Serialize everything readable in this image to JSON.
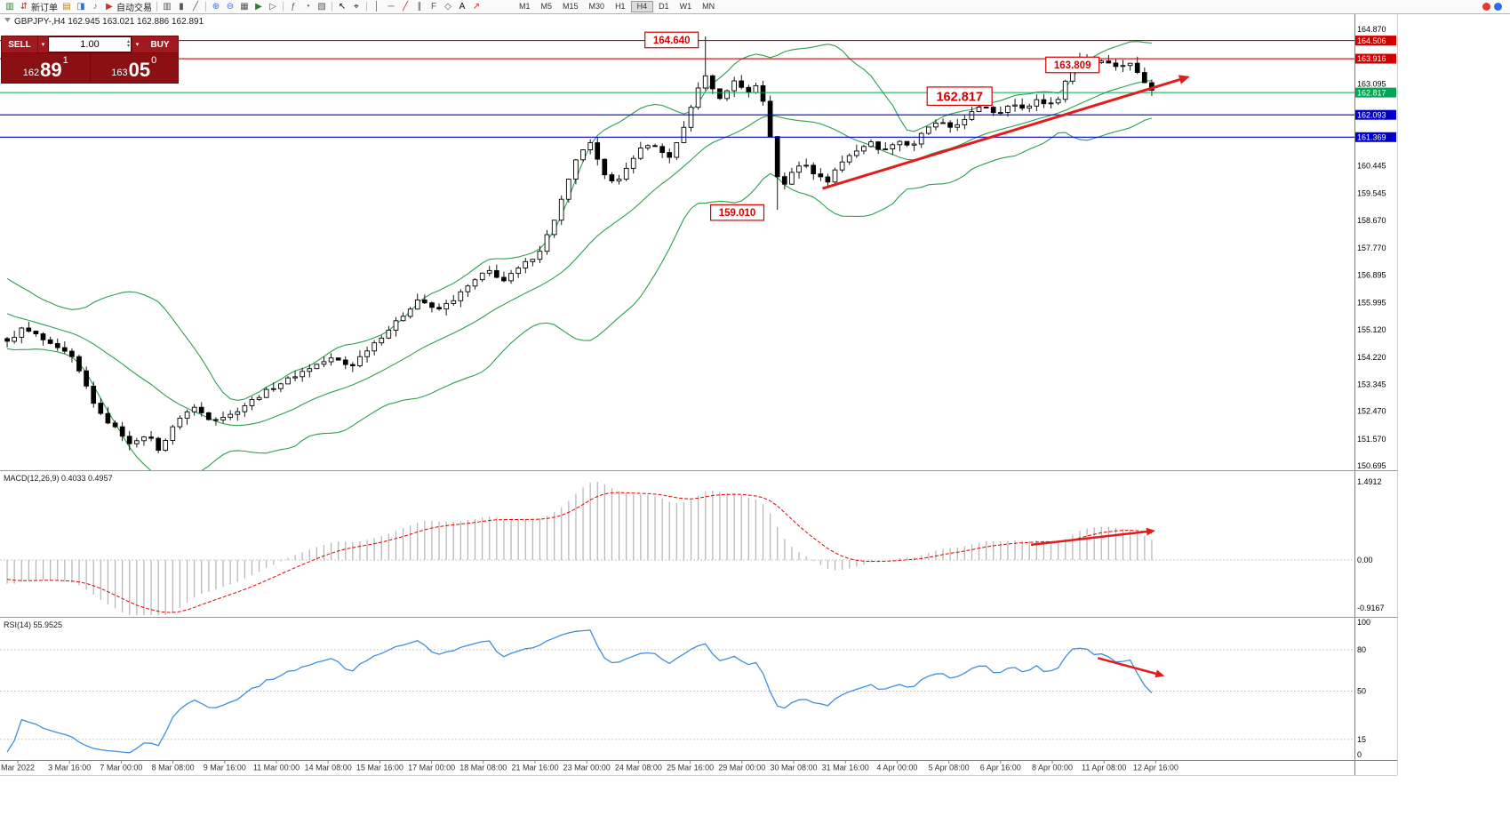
{
  "toolbar": {
    "items": [
      {
        "name": "new-chart-icon",
        "glyph": "▥",
        "color": "#2f7d32"
      },
      {
        "name": "new-order-button",
        "label": "新订单",
        "glyph": "⇵",
        "color": "#c03030"
      },
      {
        "name": "market-watch-icon",
        "glyph": "▤",
        "color": "#b8860b"
      },
      {
        "name": "data-window-icon",
        "glyph": "◨",
        "color": "#3a6fd8"
      },
      {
        "name": "sound-alert-icon",
        "glyph": "♪",
        "color": "#777777"
      },
      {
        "name": "auto-trading-button",
        "label": "自动交易",
        "glyph": "▶",
        "color": "#d03030"
      },
      {
        "sep": true
      },
      {
        "name": "bar-chart-icon",
        "glyph": "▥",
        "color": "#555555"
      },
      {
        "name": "candlestick-chart-icon",
        "glyph": "▮",
        "color": "#555555"
      },
      {
        "name": "line-chart-icon",
        "glyph": "╱",
        "color": "#555555"
      },
      {
        "sep": true
      },
      {
        "name": "zoom-in-icon",
        "glyph": "⊕",
        "color": "#3a6fd8"
      },
      {
        "name": "zoom-out-icon",
        "glyph": "⊖",
        "color": "#3a6fd8"
      },
      {
        "name": "tile-windows-icon",
        "glyph": "▦",
        "color": "#555555"
      },
      {
        "name": "auto-scroll-icon",
        "glyph": "▶",
        "color": "#2f7d32"
      },
      {
        "name": "chart-shift-icon",
        "glyph": "▷",
        "color": "#555555"
      },
      {
        "sep": true
      },
      {
        "name": "indicators-icon",
        "glyph": "ƒ",
        "color": "#2f7d32"
      },
      {
        "name": "periods-icon",
        "glyph": "◔",
        "color": "#555555"
      },
      {
        "name": "templates-icon",
        "glyph": "▧",
        "color": "#555555"
      },
      {
        "sep": true
      },
      {
        "name": "cursor-icon",
        "glyph": "↖",
        "color": "#111111"
      },
      {
        "name": "crosshair-icon",
        "glyph": "⌖",
        "color": "#111111"
      },
      {
        "sep": true
      },
      {
        "name": "vertical-line-icon",
        "glyph": "│",
        "color": "#555555"
      },
      {
        "name": "horizontal-line-icon",
        "glyph": "─",
        "color": "#555555"
      },
      {
        "name": "trendline-icon",
        "glyph": "╱",
        "color": "#c03030"
      },
      {
        "name": "equidistant-channel-icon",
        "glyph": "∥",
        "color": "#555555"
      },
      {
        "name": "fibonacci-icon",
        "glyph": "F",
        "color": "#555555"
      },
      {
        "name": "shapes-icon",
        "glyph": "◇",
        "color": "#555555"
      },
      {
        "name": "text-label-icon",
        "glyph": "A",
        "color": "#111111"
      },
      {
        "name": "arrow-object-icon",
        "glyph": "↗",
        "color": "#c03030"
      }
    ],
    "timeframes": [
      "M1",
      "M5",
      "M15",
      "M30",
      "H1",
      "H4",
      "D1",
      "W1",
      "MN"
    ],
    "active_timeframe": "H4",
    "right_icons": [
      {
        "name": "notification-red-icon",
        "color": "#e23b2e"
      },
      {
        "name": "notification-blue-icon",
        "color": "#2e6be2"
      }
    ]
  },
  "icons": {
    "caret_down": "▾",
    "caret_up": "▴"
  },
  "trade_panel": {
    "sell_button": "SELL",
    "buy_button": "BUY",
    "volume": "1.00",
    "sell_price": {
      "prefix": "162",
      "big": "89",
      "sup": "1"
    },
    "buy_price": {
      "prefix": "163",
      "big": "05",
      "sup": "0"
    }
  },
  "chart_data": {
    "type": "candlestick_with_indicators",
    "symbol": "GBPJPY-",
    "timeframe": "H4",
    "title": "GBPJPY-,H4 162.945 163.021 162.886 162.891",
    "current_ohlc": {
      "open": 162.945,
      "high": 163.021,
      "low": 162.886,
      "close": 162.891
    },
    "bid_price": 162.817,
    "visible_price_range": [
      150.695,
      164.87
    ],
    "candle_count": 160,
    "last_close": 162.891,
    "price_path_anchors": [
      [
        0.0,
        154.7
      ],
      [
        0.013,
        155.15
      ],
      [
        0.025,
        154.95
      ],
      [
        0.04,
        154.55
      ],
      [
        0.055,
        154.3
      ],
      [
        0.065,
        153.6
      ],
      [
        0.08,
        152.4
      ],
      [
        0.095,
        151.9
      ],
      [
        0.11,
        151.35
      ],
      [
        0.122,
        151.75
      ],
      [
        0.133,
        151.2
      ],
      [
        0.15,
        152.25
      ],
      [
        0.163,
        152.6
      ],
      [
        0.178,
        152.2
      ],
      [
        0.195,
        152.35
      ],
      [
        0.213,
        152.8
      ],
      [
        0.23,
        153.2
      ],
      [
        0.25,
        153.6
      ],
      [
        0.268,
        153.95
      ],
      [
        0.285,
        154.2
      ],
      [
        0.3,
        153.9
      ],
      [
        0.315,
        154.5
      ],
      [
        0.33,
        155.0
      ],
      [
        0.345,
        155.55
      ],
      [
        0.36,
        156.15
      ],
      [
        0.374,
        155.7
      ],
      [
        0.39,
        156.1
      ],
      [
        0.405,
        156.6
      ],
      [
        0.42,
        157.05
      ],
      [
        0.434,
        156.7
      ],
      [
        0.45,
        157.2
      ],
      [
        0.464,
        157.6
      ],
      [
        0.476,
        158.5
      ],
      [
        0.488,
        159.7
      ],
      [
        0.5,
        160.9
      ],
      [
        0.51,
        161.15
      ],
      [
        0.521,
        160.1
      ],
      [
        0.532,
        159.95
      ],
      [
        0.545,
        160.5
      ],
      [
        0.557,
        161.2
      ],
      [
        0.568,
        161.0
      ],
      [
        0.578,
        160.7
      ],
      [
        0.59,
        161.5
      ],
      [
        0.6,
        162.6
      ],
      [
        0.608,
        163.45
      ],
      [
        0.616,
        162.95
      ],
      [
        0.625,
        162.55
      ],
      [
        0.635,
        163.25
      ],
      [
        0.645,
        162.8
      ],
      [
        0.655,
        163.05
      ],
      [
        0.663,
        162.3
      ],
      [
        0.67,
        160.6
      ],
      [
        0.676,
        159.6
      ],
      [
        0.686,
        160.25
      ],
      [
        0.696,
        160.6
      ],
      [
        0.706,
        160.15
      ],
      [
        0.716,
        159.9
      ],
      [
        0.726,
        160.45
      ],
      [
        0.74,
        160.9
      ],
      [
        0.754,
        161.2
      ],
      [
        0.766,
        160.9
      ],
      [
        0.777,
        161.3
      ],
      [
        0.79,
        161.05
      ],
      [
        0.801,
        161.55
      ],
      [
        0.814,
        161.9
      ],
      [
        0.825,
        161.6
      ],
      [
        0.84,
        162.1
      ],
      [
        0.854,
        162.4
      ],
      [
        0.865,
        162.1
      ],
      [
        0.876,
        162.5
      ],
      [
        0.888,
        162.25
      ],
      [
        0.9,
        162.6
      ],
      [
        0.911,
        162.4
      ],
      [
        0.921,
        162.75
      ],
      [
        0.93,
        163.85
      ],
      [
        0.94,
        164.0
      ],
      [
        0.95,
        163.8
      ],
      [
        0.96,
        163.9
      ],
      [
        0.97,
        163.6
      ],
      [
        0.98,
        163.85
      ],
      [
        0.99,
        163.3
      ],
      [
        1.0,
        162.89
      ]
    ],
    "spikes": [
      {
        "f": 0.608,
        "high": 164.64
      },
      {
        "f": 0.675,
        "low": 159.01
      },
      {
        "f": 0.94,
        "high": 164.05
      }
    ],
    "bollinger": {
      "period": 20,
      "deviation": 2,
      "color": "#2e9e4f"
    },
    "levels": [
      {
        "price": 164.506,
        "color": "#d40000"
      },
      {
        "price": 163.916,
        "color": "#d40000"
      },
      {
        "price": 162.817,
        "color": "#00a651"
      },
      {
        "price": 162.093,
        "color": "#0000c8"
      },
      {
        "price": 161.369,
        "color": "#0000c8"
      }
    ],
    "price_axis": [
      {
        "v": 164.87
      },
      {
        "v": 164.506,
        "tag": "#d40000"
      },
      {
        "v": 163.916,
        "tag": "#d40000"
      },
      {
        "v": 163.095
      },
      {
        "v": 162.817,
        "tag": "#00a651"
      },
      {
        "v": 162.093,
        "tag": "#0000c8"
      },
      {
        "v": 161.369,
        "tag": "#0000c8"
      },
      {
        "v": 160.445
      },
      {
        "v": 159.545
      },
      {
        "v": 158.67
      },
      {
        "v": 157.77
      },
      {
        "v": 156.895
      },
      {
        "v": 155.995
      },
      {
        "v": 155.12
      },
      {
        "v": 154.22
      },
      {
        "v": 153.345
      },
      {
        "v": 152.47
      },
      {
        "v": 151.57
      },
      {
        "v": 150.695
      }
    ],
    "annotations": [
      {
        "text": "164.640",
        "f": 0.58,
        "price": 164.525
      },
      {
        "text": "163.809",
        "f": 0.928,
        "price": 163.715
      },
      {
        "text": "162.817",
        "f": 0.83,
        "price": 162.7,
        "big": true
      },
      {
        "text": "159.010",
        "f": 0.637,
        "price": 158.92
      }
    ],
    "trend_arrows": [
      {
        "panel": "price",
        "f1": 0.711,
        "v1": 159.7,
        "f2": 1.03,
        "v2": 163.34,
        "width": 3
      },
      {
        "panel": "macd",
        "f1": 0.892,
        "v1": 0.29,
        "f2": 1.0,
        "v2": 0.56,
        "width": 2.5
      },
      {
        "panel": "rsi",
        "f1": 0.95,
        "v1": 74,
        "f2": 1.008,
        "v2": 61,
        "width": 2.5
      }
    ],
    "macd": {
      "label": "MACD(12,26,9) 0.4033 0.4957",
      "params": [
        12,
        26,
        9
      ],
      "current_values": [
        0.4033,
        0.4957
      ],
      "axis_labels": [
        "1.4912",
        "0.00",
        "-0.9167"
      ],
      "axis_values": [
        1.4912,
        0,
        -0.9167
      ],
      "histogram_color": "#b4b4b4",
      "signal_color": "#e60000"
    },
    "rsi": {
      "label": "RSI(14) 55.9525",
      "period": 14,
      "current_value": 55.9525,
      "axis_labels": [
        "100",
        "80",
        "50",
        "15",
        "0"
      ],
      "axis_values": [
        100,
        80,
        50,
        15,
        0
      ],
      "level_lines": [
        80,
        50,
        15
      ],
      "line_color": "#3f8edc"
    },
    "time_axis": [
      "Mar 2022",
      "3 Mar 16:00",
      "7 Mar 00:00",
      "8 Mar 08:00",
      "9 Mar 16:00",
      "11 Mar 00:00",
      "14 Mar 08:00",
      "15 Mar 16:00",
      "17 Mar 00:00",
      "18 Mar 08:00",
      "21 Mar 16:00",
      "23 Mar 00:00",
      "24 Mar 08:00",
      "25 Mar 16:00",
      "29 Mar 00:00",
      "30 Mar 08:00",
      "31 Mar 16:00",
      "4 Apr 00:00",
      "5 Apr 08:00",
      "6 Apr 16:00",
      "8 Apr 00:00",
      "11 Apr 08:00",
      "12 Apr 16:00"
    ]
  }
}
